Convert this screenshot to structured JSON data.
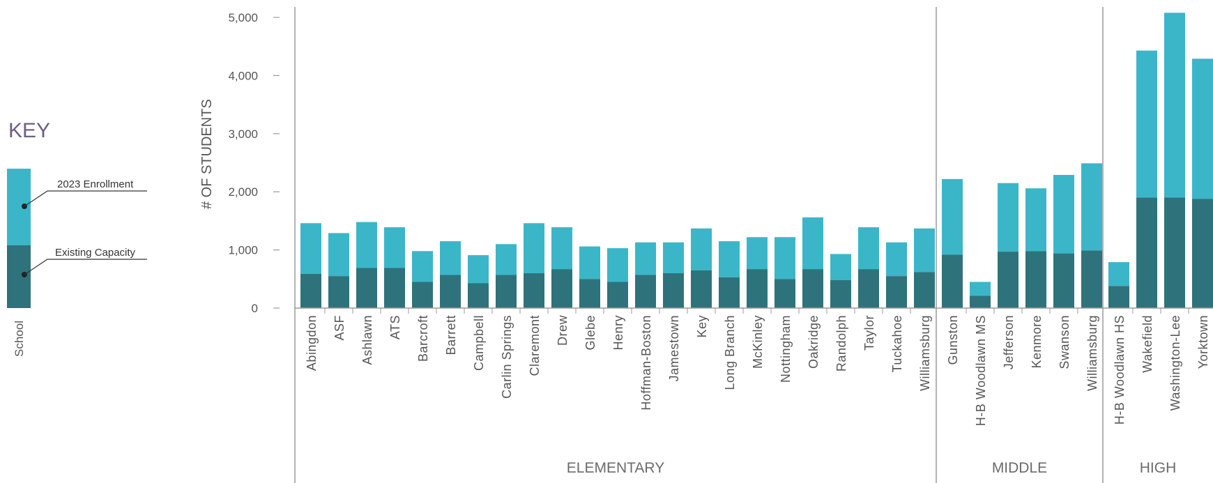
{
  "chart_data": {
    "type": "bar",
    "stacked": true,
    "ylabel": "# OF STUDENTS",
    "ylim": [
      0,
      5000
    ],
    "yticks": [
      0,
      1000,
      2000,
      3000,
      4000,
      5000
    ],
    "ytick_labels": [
      "0",
      "1,000",
      "2,000",
      "3,000",
      "4,000",
      "5,000"
    ],
    "grid": false,
    "key": {
      "title": "KEY",
      "school_label": "School",
      "enrollment_label": "2023 Enrollment",
      "capacity_label": "Existing Capacity"
    },
    "groups": [
      {
        "name": "ELEMENTARY",
        "categories": [
          "Abingdon",
          "ASF",
          "Ashlawn",
          "ATS",
          "Barcroft",
          "Barrett",
          "Campbell",
          "Carlin Springs",
          "Claremont",
          "Drew",
          "Glebe",
          "Henry",
          "Hoffman-Boston",
          "Jamestown",
          "Key",
          "Long Branch",
          "McKinley",
          "Nottingham",
          "Oakridge",
          "Randolph",
          "Taylor",
          "Tuckahoe",
          "Williamsburg"
        ],
        "lower_values": [
          590,
          550,
          690,
          690,
          450,
          570,
          430,
          570,
          600,
          670,
          500,
          450,
          570,
          600,
          650,
          530,
          670,
          500,
          670,
          480,
          670,
          550,
          620
        ],
        "total_values": [
          1460,
          1290,
          1480,
          1390,
          980,
          1150,
          910,
          1100,
          1460,
          1390,
          1060,
          1030,
          1130,
          1130,
          1370,
          1150,
          1220,
          1220,
          1560,
          930,
          1390,
          1130,
          1370
        ]
      },
      {
        "name": "MIDDLE",
        "categories": [
          "Gunston",
          "H-B Woodlawn MS",
          "Jefferson",
          "Kenmore",
          "Swanson",
          "Williamsburg"
        ],
        "lower_values": [
          920,
          210,
          970,
          980,
          940,
          990
        ],
        "total_values": [
          2220,
          450,
          2150,
          2060,
          2290,
          2490
        ]
      },
      {
        "name": "HIGH",
        "categories": [
          "H-B Woodlawn HS",
          "Wakefield",
          "Washington-Lee",
          "Yorktown"
        ],
        "lower_values": [
          380,
          1900,
          1900,
          1880
        ],
        "total_values": [
          790,
          4430,
          5080,
          4290
        ]
      }
    ]
  },
  "colors": {
    "enrollment": "#3bb6c9",
    "capacity": "#2e737b",
    "axis": "#9a9a9a",
    "divider": "#9a9a9a"
  }
}
